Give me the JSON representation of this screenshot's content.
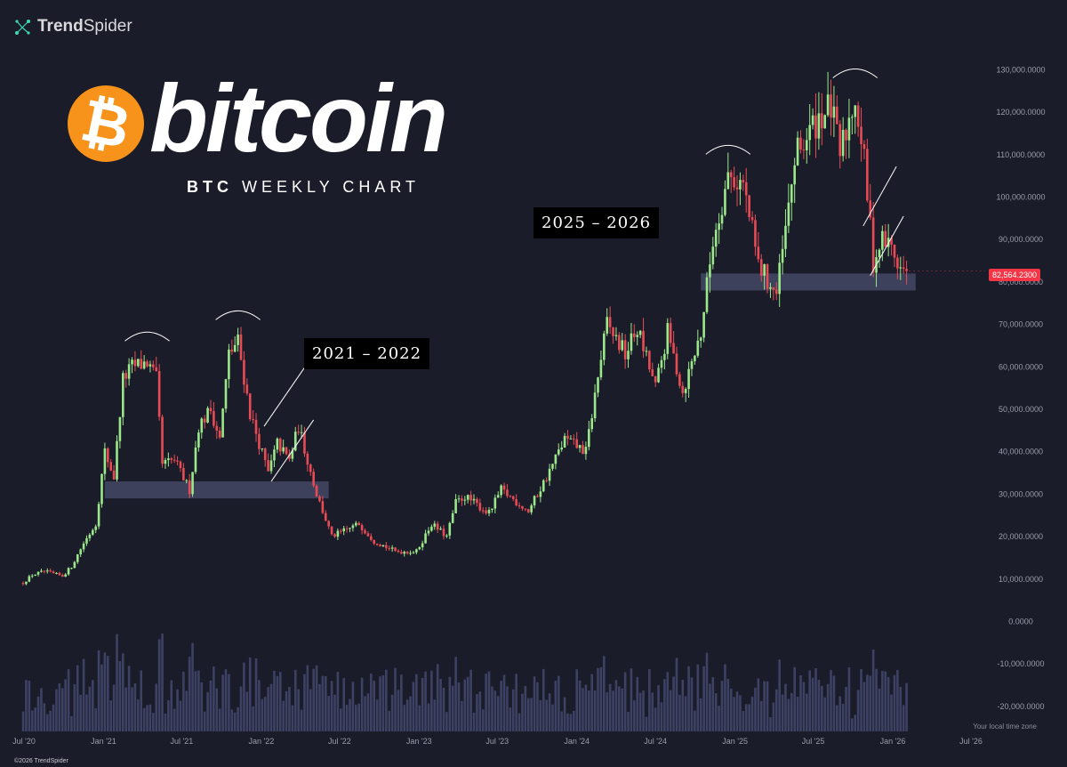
{
  "brand": {
    "name_bold": "Trend",
    "name_rest": "Spider",
    "footer": "©2026 TrendSpider"
  },
  "hero": {
    "coin_symbol": "₿",
    "word": "bitcoin",
    "sub_bold": "BTC",
    "sub_rest": "WEEKLY CHART"
  },
  "labels": {
    "period_1": "2021 – 2022",
    "period_2": "2025 – 2026",
    "timezone_note": "Your local time zone",
    "last_price": "82,564.2300"
  },
  "colors": {
    "up": "#9be88a",
    "down": "#e94b55",
    "zone": "#4a4e6e",
    "volume": "#3d4163",
    "background": "#1b1c29",
    "tag_bg": "#f23645",
    "coin": "#f7931a"
  },
  "chart_data": {
    "type": "candlestick",
    "title": "BTC WEEKLY CHART",
    "interval": "weekly",
    "y_tick_labels": [
      "130,000.0000",
      "120,000.0000",
      "110,000.0000",
      "100,000.0000",
      "90,000.0000",
      "80,000.0000",
      "70,000.0000",
      "60,000.0000",
      "50,000.0000",
      "40,000.0000",
      "30,000.0000",
      "20,000.0000",
      "10,000.0000",
      "0.0000",
      "-10,000.0000",
      "-20,000.0000"
    ],
    "y_tick_values": [
      130000,
      120000,
      110000,
      100000,
      90000,
      80000,
      70000,
      60000,
      50000,
      40000,
      30000,
      20000,
      10000,
      0,
      -10000,
      -20000
    ],
    "ylim": [
      -25000,
      135000
    ],
    "x_tick_labels": [
      "Jul '20",
      "Jan '21",
      "Jul '21",
      "Jan '22",
      "Jul '22",
      "Jan '23",
      "Jul '23",
      "Jan '24",
      "Jul '24",
      "Jan '25",
      "Jul '25",
      "Jan '26",
      "Jul '26"
    ],
    "x_tick_values": [
      "2020-07",
      "2021-01",
      "2021-07",
      "2022-01",
      "2022-07",
      "2023-01",
      "2023-07",
      "2024-01",
      "2024-07",
      "2025-01",
      "2025-07",
      "2026-01",
      "2026-07"
    ],
    "last_price": 82564.23,
    "close_path": [
      [
        "2020-06-29",
        9100
      ],
      [
        "2020-07-20",
        11000
      ],
      [
        "2020-08-17",
        11800
      ],
      [
        "2020-09-28",
        10700
      ],
      [
        "2020-10-19",
        13000
      ],
      [
        "2020-11-16",
        18500
      ],
      [
        "2020-12-14",
        23000
      ],
      [
        "2021-01-04",
        40000
      ],
      [
        "2021-01-25",
        34000
      ],
      [
        "2021-02-15",
        57000
      ],
      [
        "2021-03-08",
        60000
      ],
      [
        "2021-04-12",
        61000
      ],
      [
        "2021-05-03",
        57000
      ],
      [
        "2021-05-17",
        37000
      ],
      [
        "2021-06-14",
        38000
      ],
      [
        "2021-07-19",
        31000
      ],
      [
        "2021-08-09",
        46000
      ],
      [
        "2021-09-06",
        50000
      ],
      [
        "2021-09-27",
        43000
      ],
      [
        "2021-10-18",
        63000
      ],
      [
        "2021-11-08",
        66000
      ],
      [
        "2021-12-06",
        49000
      ],
      [
        "2022-01-17",
        35000
      ],
      [
        "2022-02-07",
        42000
      ],
      [
        "2022-03-07",
        38000
      ],
      [
        "2022-03-28",
        46000
      ],
      [
        "2022-05-09",
        30000
      ],
      [
        "2022-06-13",
        20000
      ],
      [
        "2022-08-15",
        23000
      ],
      [
        "2022-09-19",
        19000
      ],
      [
        "2022-11-07",
        16500
      ],
      [
        "2022-12-26",
        16500
      ],
      [
        "2023-01-30",
        23000
      ],
      [
        "2023-03-06",
        20000
      ],
      [
        "2023-03-27",
        28000
      ],
      [
        "2023-04-17",
        29500
      ],
      [
        "2023-06-12",
        25500
      ],
      [
        "2023-07-10",
        31000
      ],
      [
        "2023-09-11",
        26000
      ],
      [
        "2023-10-23",
        34000
      ],
      [
        "2023-12-04",
        43000
      ],
      [
        "2024-01-22",
        40000
      ],
      [
        "2024-02-26",
        62000
      ],
      [
        "2024-03-11",
        70000
      ],
      [
        "2024-04-22",
        63000
      ],
      [
        "2024-05-20",
        69000
      ],
      [
        "2024-07-01",
        55000
      ],
      [
        "2024-07-29",
        68000
      ],
      [
        "2024-09-02",
        54000
      ],
      [
        "2024-10-14",
        68000
      ],
      [
        "2024-11-11",
        90000
      ],
      [
        "2024-12-16",
        105000
      ],
      [
        "2025-01-20",
        103000
      ],
      [
        "2025-02-24",
        84000
      ],
      [
        "2025-04-07",
        77000
      ],
      [
        "2025-05-05",
        97000
      ],
      [
        "2025-05-19",
        109000
      ],
      [
        "2025-07-14",
        119000
      ],
      [
        "2025-08-11",
        121000
      ],
      [
        "2025-09-01",
        110000
      ],
      [
        "2025-10-06",
        124000
      ],
      [
        "2025-10-27",
        108000
      ],
      [
        "2025-11-17",
        85000
      ],
      [
        "2025-12-08",
        90000
      ],
      [
        "2025-12-29",
        88000
      ],
      [
        "2026-01-19",
        83000
      ],
      [
        "2026-02-02",
        82564.23
      ]
    ],
    "support_zones": [
      {
        "from": "2021-01-04",
        "to": "2022-06-06",
        "low": 29000,
        "high": 33000
      },
      {
        "from": "2024-10-14",
        "to": "2026-02-23",
        "low": 78000,
        "high": 82000
      }
    ],
    "tops": [
      {
        "date": "2021-04-12",
        "price": 64000
      },
      {
        "date": "2021-11-08",
        "price": 69000
      },
      {
        "date": "2024-12-16",
        "price": 108000
      },
      {
        "date": "2025-10-06",
        "price": 126000
      }
    ],
    "channels": [
      {
        "from": "2022-01-24",
        "to": "2022-05-02",
        "start_low": 33000,
        "end_low": 47500,
        "width": 5000
      },
      {
        "from": "2025-11-10",
        "to": "2026-01-26",
        "start_low": 81500,
        "end_low": 95500,
        "width": 4500
      }
    ]
  }
}
